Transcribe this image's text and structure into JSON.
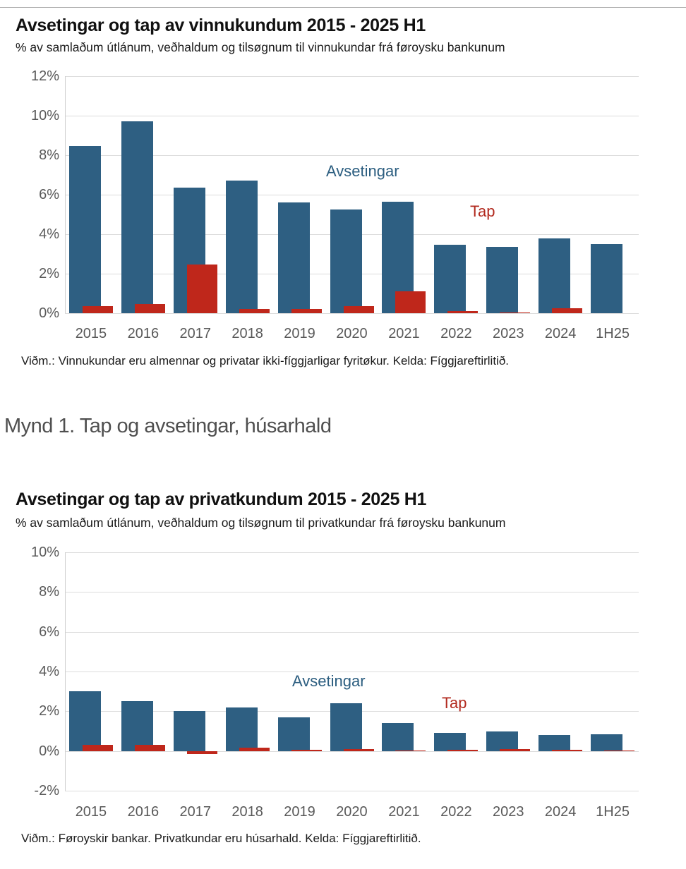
{
  "figure_caption": "Mynd 1. Tap og avsetingar, húsarhald",
  "colors": {
    "avsetingar_blue": "#2E5F82",
    "tap_red": "#BF271B",
    "grid": "#dcdcdc",
    "axis": "#cfcfcf",
    "tick_text": "#595959",
    "top_rule": "#ababab"
  },
  "chart_data": [
    {
      "type": "bar",
      "title": "Avsetingar og tap av vinnukundum 2015 - 2025 H1",
      "subtitle": "% av samlaðum útlánum, veðhaldum og tilsøgnum til vinnukundar frá føroysku bankunum",
      "footnote": "Viðm.: Vinnukundar eru almennar og privatar ikki-fíggjarligar fyritøkur. Kelda: Fíggjareftirlitið.",
      "categories": [
        "2015",
        "2016",
        "2017",
        "2018",
        "2019",
        "2020",
        "2021",
        "2022",
        "2023",
        "2024",
        "1H25"
      ],
      "series": [
        {
          "name": "Avsetingar",
          "color": "#2E5F82",
          "values": [
            8.45,
            9.7,
            6.35,
            6.7,
            5.6,
            5.25,
            5.65,
            3.45,
            3.35,
            3.8,
            3.5
          ]
        },
        {
          "name": "Tap",
          "color": "#BF271B",
          "values": [
            0.35,
            0.45,
            2.45,
            0.2,
            0.2,
            0.35,
            1.1,
            0.1,
            0.03,
            0.25,
            0
          ]
        }
      ],
      "ylabel": "%",
      "ylim": [
        0,
        12
      ],
      "ytick_step": 2,
      "ytick_labels": [
        "12%",
        "10%",
        "8%",
        "6%",
        "4%",
        "2%",
        "0%"
      ],
      "grid": true,
      "legend": "inline-annotations"
    },
    {
      "type": "bar",
      "title": "Avsetingar og tap av privatkundum 2015 - 2025 H1",
      "subtitle": "% av samlaðum útlánum, veðhaldum og tilsøgnum til privatkundar frá føroysku bankunum",
      "footnote": "Viðm.: Føroyskir bankar. Privatkundar eru húsarhald. Kelda: Fíggjareftirlitið.",
      "categories": [
        "2015",
        "2016",
        "2017",
        "2018",
        "2019",
        "2020",
        "2021",
        "2022",
        "2023",
        "2024",
        "1H25"
      ],
      "series": [
        {
          "name": "Avsetingar",
          "color": "#2E5F82",
          "values": [
            3.0,
            2.5,
            2.0,
            2.2,
            1.7,
            2.4,
            1.4,
            0.9,
            1.0,
            0.8,
            0.85
          ]
        },
        {
          "name": "Tap",
          "color": "#BF271B",
          "values": [
            0.3,
            0.32,
            -0.17,
            0.15,
            0.05,
            0.1,
            0.03,
            0.06,
            0.1,
            0.05,
            0.02
          ]
        }
      ],
      "ylabel": "%",
      "ylim": [
        -2,
        10
      ],
      "ytick_step": 2,
      "ytick_labels": [
        "10%",
        "8%",
        "6%",
        "4%",
        "2%",
        "0%",
        "-2%"
      ],
      "grid": true,
      "legend": "inline-annotations"
    }
  ]
}
